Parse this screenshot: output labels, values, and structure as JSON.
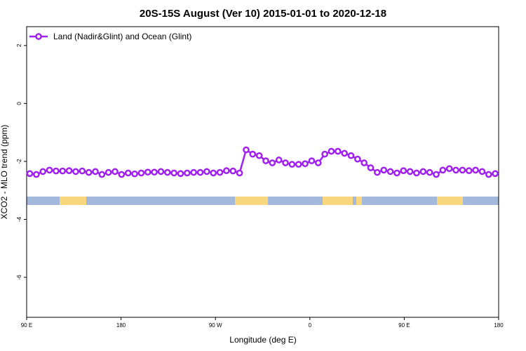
{
  "chart_data": {
    "type": "line",
    "title": "20S-15S August (Ver 10)   2015-01-01 to 2020-12-18",
    "xlabel": "Longitude (deg E)",
    "ylabel": "XCO2 - MLO trend (ppm)",
    "xlim": [
      90,
      540
    ],
    "ylim": [
      -7.38,
      2.65
    ],
    "xticks": [
      {
        "value": 90,
        "label": "90 E"
      },
      180,
      {
        "value": 270,
        "label": "90 W"
      },
      {
        "value": 360,
        "label": "0"
      },
      {
        "value": 450,
        "label": "90 E"
      },
      {
        "value": 540,
        "label": "180"
      }
    ],
    "yticks": [
      2,
      0,
      -2,
      -4,
      -6
    ],
    "legend": "top-left",
    "series": [
      {
        "name": "Land (Nadir&Glint) and Ocean (Glint)",
        "color": "#a020f0",
        "x": [
          93,
          99.25,
          105.5,
          111.75,
          118,
          124.25,
          130.5,
          136.75,
          143,
          149.25,
          155.5,
          161.75,
          168,
          174.25,
          180.5,
          186.75,
          193,
          199.25,
          205.5,
          211.75,
          218,
          224.25,
          230.5,
          236.75,
          243,
          249.25,
          255.5,
          261.75,
          268,
          274.25,
          280.5,
          286.75,
          293,
          299.25,
          305.5,
          311.75,
          318,
          324.25,
          330.5,
          336.75,
          343,
          349.25,
          355.5,
          361.75,
          368,
          374.25,
          380.5,
          386.75,
          393,
          399.25,
          405.5,
          411.75,
          418,
          424.25,
          430.5,
          436.75,
          443,
          449.25,
          455.5,
          461.75,
          468,
          474.25,
          480.5,
          486.75,
          493,
          499.25,
          505.5,
          511.75,
          518,
          524.25,
          530.5,
          536.75
        ],
        "values": [
          -2.42,
          -2.45,
          -2.35,
          -2.3,
          -2.33,
          -2.33,
          -2.32,
          -2.35,
          -2.33,
          -2.38,
          -2.35,
          -2.45,
          -2.38,
          -2.35,
          -2.45,
          -2.4,
          -2.43,
          -2.4,
          -2.37,
          -2.37,
          -2.35,
          -2.38,
          -2.4,
          -2.42,
          -2.4,
          -2.38,
          -2.38,
          -2.35,
          -2.4,
          -2.38,
          -2.32,
          -2.33,
          -2.4,
          -1.6,
          -1.75,
          -1.8,
          -1.98,
          -2.05,
          -1.95,
          -2.05,
          -2.1,
          -2.1,
          -2.08,
          -1.98,
          -2.05,
          -1.75,
          -1.65,
          -1.65,
          -1.72,
          -1.8,
          -1.92,
          -2.05,
          -2.22,
          -2.38,
          -2.3,
          -2.35,
          -2.4,
          -2.32,
          -2.35,
          -2.4,
          -2.35,
          -2.38,
          -2.45,
          -2.3,
          -2.25,
          -2.3,
          -2.3,
          -2.32,
          -2.3,
          -2.35,
          -2.45,
          -2.42
        ]
      }
    ]
  }
}
